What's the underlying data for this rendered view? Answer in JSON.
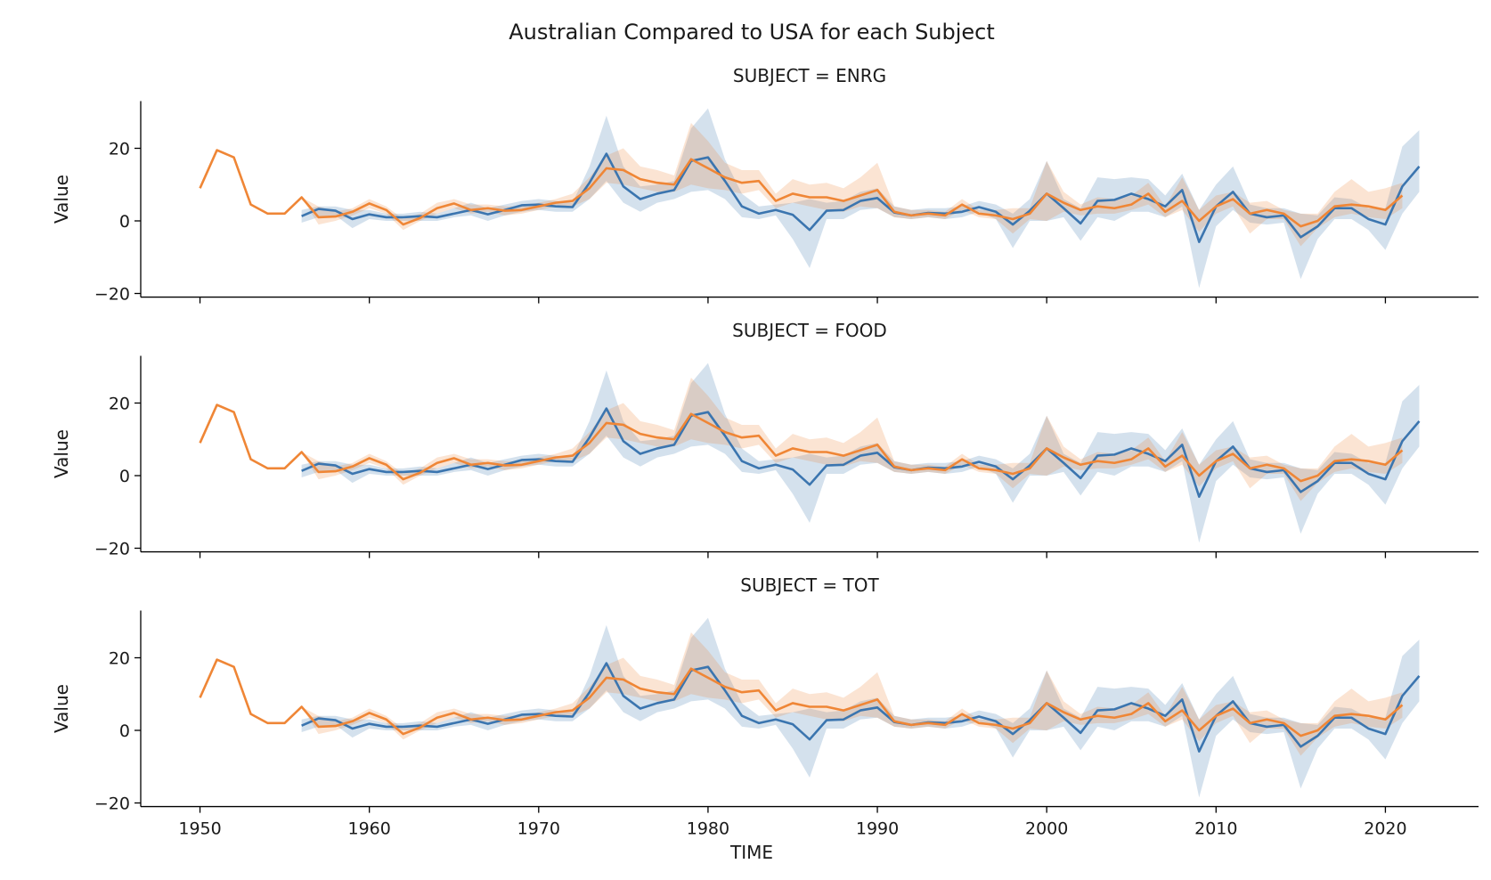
{
  "chart_data": {
    "type": "line",
    "title": "Australian Compared to USA for each Subject",
    "xlabel": "TIME",
    "ylabel": "Value",
    "xlim": [
      1946.5,
      2025.5
    ],
    "ylim": [
      -21,
      33
    ],
    "xticks": [
      1950,
      1960,
      1970,
      1980,
      1990,
      2000,
      2010,
      2020
    ],
    "yticks": [
      -20,
      0,
      20
    ],
    "colors": {
      "blue": "#3b75af",
      "orange": "#ef8636"
    },
    "panels": [
      {
        "title": "SUBJECT = ENRG"
      },
      {
        "title": "SUBJECT = FOOD"
      },
      {
        "title": "SUBJECT = TOT"
      }
    ],
    "series": [
      {
        "color": "blue",
        "x": [
          1956,
          1957,
          1958,
          1959,
          1960,
          1961,
          1962,
          1963,
          1964,
          1965,
          1966,
          1967,
          1968,
          1969,
          1970,
          1971,
          1972,
          1973,
          1974,
          1975,
          1976,
          1977,
          1978,
          1979,
          1980,
          1981,
          1982,
          1983,
          1984,
          1985,
          1986,
          1987,
          1988,
          1989,
          1990,
          1991,
          1992,
          1993,
          1994,
          1995,
          1996,
          1997,
          1998,
          1999,
          2000,
          2001,
          2002,
          2003,
          2004,
          2005,
          2006,
          2007,
          2008,
          2009,
          2010,
          2011,
          2012,
          2013,
          2014,
          2015,
          2016,
          2017,
          2018,
          2019,
          2020,
          2021,
          2022
        ],
        "y": [
          1.3,
          3.3,
          2.8,
          0.5,
          1.8,
          1.0,
          1.0,
          1.3,
          1.0,
          2.0,
          3.0,
          1.8,
          3.0,
          4.3,
          4.5,
          4.0,
          3.8,
          10.5,
          18.5,
          9.5,
          6.0,
          7.5,
          8.5,
          16.5,
          17.5,
          11.0,
          4.0,
          2.0,
          3.0,
          1.7,
          -2.5,
          2.8,
          3.0,
          5.5,
          6.3,
          2.3,
          1.5,
          2.2,
          2.0,
          2.5,
          3.8,
          2.5,
          -1.0,
          2.8,
          7.5,
          3.5,
          -0.7,
          5.5,
          5.8,
          7.5,
          6.0,
          4.0,
          8.5,
          -5.8,
          4.0,
          8.0,
          2.0,
          1.0,
          1.5,
          -4.5,
          -1.5,
          3.5,
          3.5,
          0.5,
          -1.0,
          9.5,
          15.0
        ],
        "band": [
          [
            -0.5,
            3.0
          ],
          [
            1.0,
            4.0
          ],
          [
            1.5,
            4.0
          ],
          [
            -2.0,
            3.0
          ],
          [
            0.5,
            3.0
          ],
          [
            0.0,
            2.0
          ],
          [
            0.0,
            2.0
          ],
          [
            0.0,
            2.5
          ],
          [
            0.0,
            2.0
          ],
          [
            1.0,
            3.5
          ],
          [
            1.5,
            5.0
          ],
          [
            0.0,
            3.5
          ],
          [
            1.5,
            4.5
          ],
          [
            2.5,
            5.5
          ],
          [
            3.0,
            6.0
          ],
          [
            2.5,
            5.5
          ],
          [
            2.5,
            5.0
          ],
          [
            6.0,
            15.0
          ],
          [
            11.0,
            29.0
          ],
          [
            5.0,
            15.0
          ],
          [
            2.5,
            9.5
          ],
          [
            5.0,
            10.0
          ],
          [
            6.0,
            11.0
          ],
          [
            8.0,
            25.5
          ],
          [
            8.5,
            31.0
          ],
          [
            6.0,
            17.0
          ],
          [
            1.0,
            7.5
          ],
          [
            0.5,
            4.0
          ],
          [
            1.5,
            4.5
          ],
          [
            -5.0,
            5.0
          ],
          [
            -13.0,
            6.0
          ],
          [
            0.5,
            5.0
          ],
          [
            0.5,
            5.5
          ],
          [
            3.0,
            8.0
          ],
          [
            3.5,
            9.0
          ],
          [
            1.0,
            4.0
          ],
          [
            0.5,
            3.0
          ],
          [
            1.0,
            3.5
          ],
          [
            0.5,
            3.5
          ],
          [
            1.0,
            4.0
          ],
          [
            2.5,
            5.5
          ],
          [
            0.5,
            4.5
          ],
          [
            -7.5,
            2.0
          ],
          [
            0.0,
            6.0
          ],
          [
            0.0,
            16.5
          ],
          [
            1.0,
            6.0
          ],
          [
            -5.5,
            3.5
          ],
          [
            1.0,
            12.0
          ],
          [
            0.0,
            11.5
          ],
          [
            2.5,
            12.0
          ],
          [
            2.5,
            11.5
          ],
          [
            1.0,
            7.0
          ],
          [
            4.0,
            13.0
          ],
          [
            -18.5,
            3.0
          ],
          [
            -1.5,
            10.0
          ],
          [
            3.0,
            15.0
          ],
          [
            -0.5,
            4.5
          ],
          [
            -1.0,
            3.5
          ],
          [
            -0.5,
            3.5
          ],
          [
            -16.0,
            2.0
          ],
          [
            -5.0,
            1.5
          ],
          [
            0.5,
            6.5
          ],
          [
            0.5,
            6.0
          ],
          [
            -2.5,
            3.5
          ],
          [
            -8.0,
            3.5
          ],
          [
            2.0,
            20.5
          ],
          [
            8.0,
            25.0
          ]
        ]
      },
      {
        "color": "orange",
        "x": [
          1950,
          1951,
          1952,
          1953,
          1954,
          1955,
          1956,
          1957,
          1958,
          1959,
          1960,
          1961,
          1962,
          1963,
          1964,
          1965,
          1966,
          1967,
          1968,
          1969,
          1970,
          1971,
          1972,
          1973,
          1974,
          1975,
          1976,
          1977,
          1978,
          1979,
          1980,
          1981,
          1982,
          1983,
          1984,
          1985,
          1986,
          1987,
          1988,
          1989,
          1990,
          1991,
          1992,
          1993,
          1994,
          1995,
          1996,
          1997,
          1998,
          1999,
          2000,
          2001,
          2002,
          2003,
          2004,
          2005,
          2006,
          2007,
          2008,
          2009,
          2010,
          2011,
          2012,
          2013,
          2014,
          2015,
          2016,
          2017,
          2018,
          2019,
          2020,
          2021
        ],
        "y": [
          9.0,
          19.5,
          17.5,
          4.5,
          2.0,
          2.0,
          6.5,
          1.0,
          1.2,
          2.5,
          4.8,
          3.0,
          -1.0,
          0.8,
          3.5,
          4.8,
          3.0,
          3.5,
          2.8,
          3.0,
          4.0,
          5.0,
          5.5,
          9.0,
          14.5,
          14.0,
          11.5,
          10.5,
          10.0,
          17.0,
          14.5,
          12.0,
          10.5,
          11.0,
          5.5,
          7.5,
          6.5,
          6.5,
          5.5,
          7.0,
          8.5,
          2.5,
          1.5,
          2.0,
          1.5,
          4.5,
          2.0,
          1.5,
          0.5,
          2.0,
          7.5,
          5.0,
          3.0,
          4.0,
          3.5,
          4.5,
          7.5,
          2.5,
          5.5,
          0.0,
          4.0,
          6.0,
          2.0,
          3.0,
          2.0,
          -1.5,
          0.0,
          4.0,
          4.5,
          4.0,
          3.0,
          7.0
        ],
        "band": [
          [
            9.0,
            9.0
          ],
          [
            19.5,
            19.5
          ],
          [
            17.5,
            17.5
          ],
          [
            4.5,
            4.5
          ],
          [
            2.0,
            2.0
          ],
          [
            2.0,
            2.0
          ],
          [
            6.5,
            6.5
          ],
          [
            -1.0,
            4.0
          ],
          [
            0.0,
            2.5
          ],
          [
            1.5,
            3.5
          ],
          [
            3.5,
            6.0
          ],
          [
            2.0,
            4.0
          ],
          [
            -2.5,
            0.5
          ],
          [
            0.0,
            2.0
          ],
          [
            2.0,
            5.0
          ],
          [
            3.5,
            6.0
          ],
          [
            2.0,
            4.5
          ],
          [
            2.5,
            4.5
          ],
          [
            1.5,
            4.0
          ],
          [
            2.0,
            4.0
          ],
          [
            3.0,
            5.0
          ],
          [
            4.0,
            6.0
          ],
          [
            4.0,
            7.5
          ],
          [
            6.0,
            12.0
          ],
          [
            10.5,
            18.0
          ],
          [
            10.0,
            20.0
          ],
          [
            9.0,
            15.0
          ],
          [
            8.0,
            14.0
          ],
          [
            8.0,
            12.5
          ],
          [
            10.0,
            27.0
          ],
          [
            9.0,
            22.0
          ],
          [
            8.5,
            16.0
          ],
          [
            7.5,
            14.0
          ],
          [
            8.5,
            14.0
          ],
          [
            3.5,
            7.5
          ],
          [
            5.0,
            11.5
          ],
          [
            4.0,
            10.0
          ],
          [
            3.0,
            10.5
          ],
          [
            2.5,
            9.0
          ],
          [
            4.0,
            12.0
          ],
          [
            3.5,
            16.0
          ],
          [
            1.0,
            4.0
          ],
          [
            0.5,
            3.0
          ],
          [
            1.0,
            3.0
          ],
          [
            0.5,
            2.5
          ],
          [
            3.0,
            6.0
          ],
          [
            1.0,
            3.0
          ],
          [
            0.5,
            3.0
          ],
          [
            -3.5,
            3.5
          ],
          [
            0.5,
            3.5
          ],
          [
            0.0,
            16.5
          ],
          [
            2.5,
            8.0
          ],
          [
            1.5,
            4.5
          ],
          [
            2.0,
            6.5
          ],
          [
            2.0,
            6.0
          ],
          [
            3.0,
            7.0
          ],
          [
            4.5,
            10.5
          ],
          [
            1.0,
            4.0
          ],
          [
            3.0,
            12.0
          ],
          [
            -3.0,
            3.0
          ],
          [
            2.0,
            7.0
          ],
          [
            4.0,
            8.0
          ],
          [
            -3.5,
            5.0
          ],
          [
            0.5,
            5.5
          ],
          [
            0.5,
            3.0
          ],
          [
            -7.0,
            2.0
          ],
          [
            -2.0,
            2.0
          ],
          [
            1.0,
            8.0
          ],
          [
            2.0,
            11.5
          ],
          [
            1.0,
            8.0
          ],
          [
            0.5,
            9.0
          ],
          [
            3.5,
            10.5
          ]
        ]
      }
    ]
  }
}
